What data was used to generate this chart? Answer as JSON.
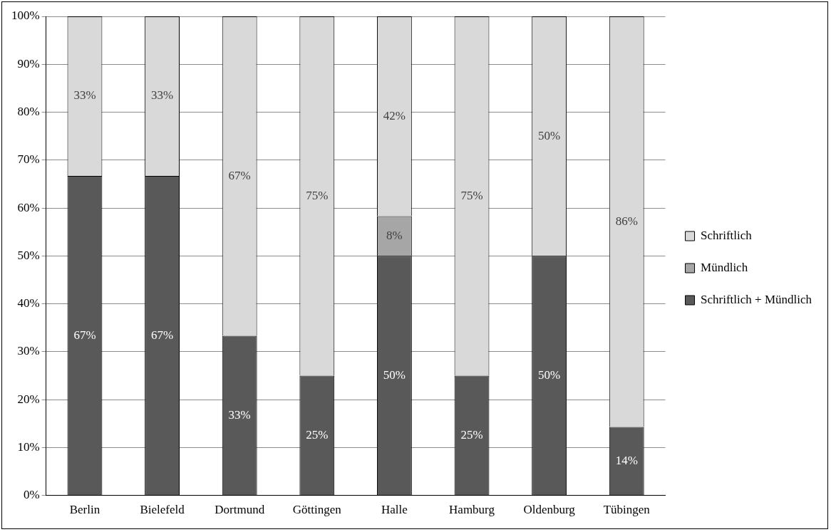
{
  "chart_data": {
    "type": "bar",
    "stacked": true,
    "categories": [
      "Berlin",
      "Bielefeld",
      "Dortmund",
      "Göttingen",
      "Halle",
      "Hamburg",
      "Oldenburg",
      "Tübingen"
    ],
    "series": [
      {
        "name": "Schriftlich + Mündlich",
        "color": "#595959",
        "values": [
          66.7,
          66.7,
          33.3,
          25,
          50,
          25,
          50,
          14.3
        ],
        "value_labels": [
          "67%",
          "67%",
          "33%",
          "25%",
          "50%",
          "25%",
          "50%",
          "14%"
        ]
      },
      {
        "name": "Mündlich",
        "color": "#a6a6a6",
        "values": [
          0,
          0,
          0,
          0,
          8.3,
          0,
          0,
          0
        ],
        "value_labels": [
          null,
          null,
          null,
          null,
          "8%",
          null,
          null,
          null
        ]
      },
      {
        "name": "Schriftlich",
        "color": "#d9d9d9",
        "values": [
          33.3,
          33.3,
          66.7,
          75,
          41.7,
          75,
          50,
          85.7
        ],
        "value_labels": [
          "33%",
          "33%",
          "67%",
          "75%",
          "42%",
          "75%",
          "50%",
          "86%"
        ]
      }
    ],
    "ylim": [
      0,
      100
    ],
    "yticks": [
      {
        "value": 0,
        "label": "0%"
      },
      {
        "value": 10,
        "label": "10%"
      },
      {
        "value": 20,
        "label": "20%"
      },
      {
        "value": 30,
        "label": "30%"
      },
      {
        "value": 40,
        "label": "40%"
      },
      {
        "value": 50,
        "label": "50%"
      },
      {
        "value": 60,
        "label": "60%"
      },
      {
        "value": 70,
        "label": "70%"
      },
      {
        "value": 80,
        "label": "80%"
      },
      {
        "value": 90,
        "label": "90%"
      },
      {
        "value": 100,
        "label": "100%"
      }
    ],
    "grid": "y",
    "legend": "right"
  }
}
